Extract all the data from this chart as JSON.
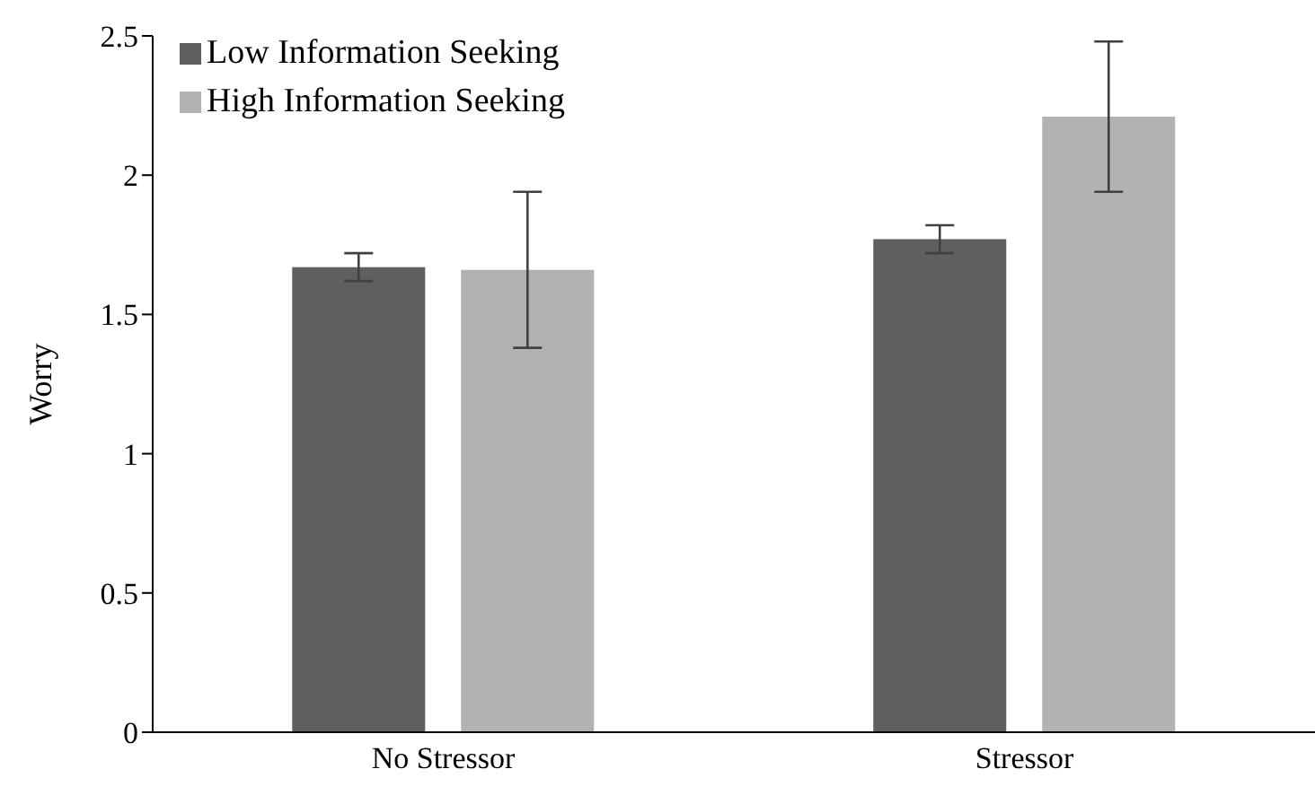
{
  "chart_data": {
    "type": "bar",
    "ylabel": "Worry",
    "categories": [
      "No Stressor",
      "Stressor"
    ],
    "series": [
      {
        "name": "Low Information Seeking",
        "color": "#5f5f5f",
        "values": [
          1.67,
          1.77
        ],
        "errors": [
          0.05,
          0.05
        ]
      },
      {
        "name": "High Information Seeking",
        "color": "#b2b2b2",
        "values": [
          1.66,
          2.21
        ],
        "errors": [
          0.28,
          0.27
        ]
      }
    ],
    "ylim": [
      0,
      2.5
    ],
    "yticks": [
      0,
      0.5,
      1,
      1.5,
      2,
      2.5
    ],
    "grid": false,
    "legend": "top left"
  }
}
